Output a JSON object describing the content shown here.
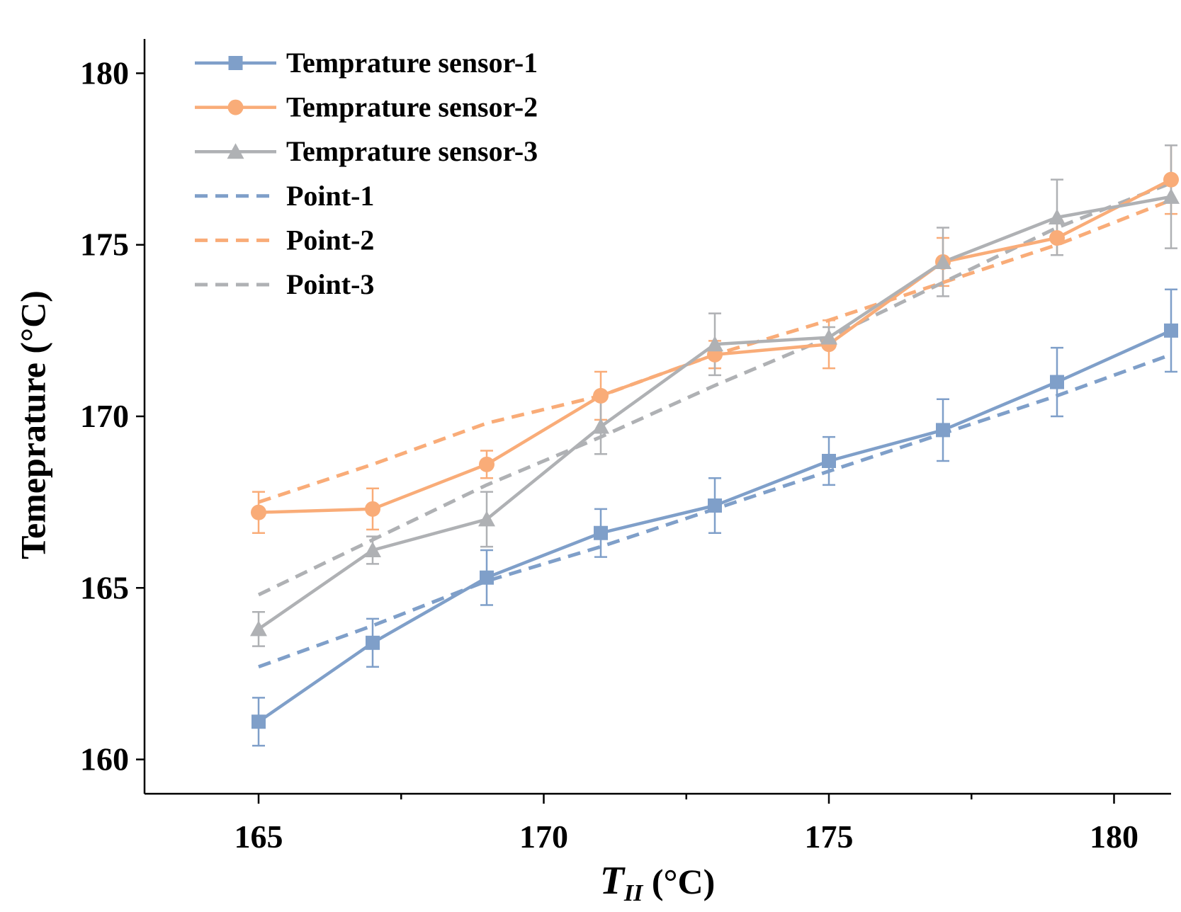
{
  "chart_data": {
    "type": "line",
    "title": "",
    "xlabel": "T",
    "xlabel_subscript": "II",
    "xlabel_unit": " (°C)",
    "ylabel": "Temeprature (°C)",
    "xlim": [
      163,
      181
    ],
    "ylim": [
      159,
      181
    ],
    "xticks": [
      165,
      170,
      175,
      180
    ],
    "xminor_ticks": [
      167.5,
      172.5,
      177.5
    ],
    "yticks": [
      160,
      165,
      170,
      175,
      180
    ],
    "grid": false,
    "legend_position": "top-left",
    "x": [
      165,
      167,
      169,
      171,
      173,
      175,
      177,
      179,
      181
    ],
    "series": [
      {
        "name": "Temprature sensor-1",
        "style": "solid",
        "marker": "square",
        "color": "#7f9fc9",
        "values": [
          161.1,
          163.4,
          165.3,
          166.6,
          167.4,
          168.7,
          169.6,
          171.0,
          172.5
        ],
        "errors": [
          0.7,
          0.7,
          0.8,
          0.7,
          0.8,
          0.7,
          0.9,
          1.0,
          1.2
        ]
      },
      {
        "name": "Temprature sensor-2",
        "style": "solid",
        "marker": "circle",
        "color": "#f9ac78",
        "values": [
          167.2,
          167.3,
          168.6,
          170.6,
          171.8,
          172.1,
          174.5,
          175.2,
          176.9
        ],
        "errors": [
          0.6,
          0.6,
          0.4,
          0.7,
          0.4,
          0.7,
          0.7,
          0.5,
          1.0
        ]
      },
      {
        "name": "Temprature sensor-3",
        "style": "solid",
        "marker": "triangle",
        "color": "#afb1b4",
        "values": [
          163.8,
          166.1,
          167.0,
          169.7,
          172.1,
          172.3,
          174.5,
          175.8,
          176.4
        ],
        "errors": [
          0.5,
          0.4,
          0.8,
          0.8,
          0.9,
          0.3,
          1.0,
          1.1,
          1.5
        ]
      },
      {
        "name": "Point-1",
        "style": "dashed",
        "marker": "none",
        "color": "#7f9fc9",
        "values": [
          162.7,
          163.9,
          165.2,
          166.2,
          167.3,
          168.4,
          169.5,
          170.6,
          171.8
        ]
      },
      {
        "name": "Point-2",
        "style": "dashed",
        "marker": "none",
        "color": "#f9ac78",
        "values": [
          167.5,
          168.6,
          169.8,
          170.6,
          171.8,
          172.8,
          173.9,
          175.0,
          176.3
        ]
      },
      {
        "name": "Point-3",
        "style": "dashed",
        "marker": "none",
        "color": "#afb1b4",
        "values": [
          164.8,
          166.4,
          168.0,
          169.4,
          170.9,
          172.3,
          173.9,
          175.5,
          176.8
        ]
      }
    ]
  }
}
